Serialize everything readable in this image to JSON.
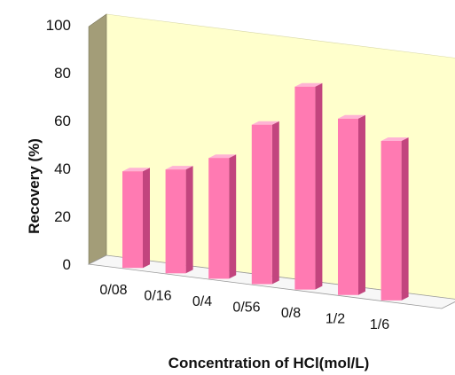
{
  "chart_data": {
    "type": "bar",
    "style": "3d-column",
    "categories": [
      "0/08",
      "0/16",
      "0/4",
      "0/56",
      "0/8",
      "1/2",
      "1/6"
    ],
    "values": [
      40,
      43,
      50,
      66,
      84,
      73,
      66
    ],
    "xlabel": "Concentration of HCl(mol/L)",
    "ylabel": "Recovery (%)",
    "ylim": [
      0,
      100
    ],
    "yticks": [
      "0",
      "20",
      "40",
      "60",
      "80",
      "100"
    ],
    "grid": false,
    "legend": "none",
    "colors": {
      "bar_front": "#ff7ab2",
      "bar_side": "#c2457e",
      "bar_top": "#ffb3d4",
      "back_wall": "#ffffcc",
      "side_wall": "#a39d78",
      "floor": "#f7f7f7"
    }
  }
}
